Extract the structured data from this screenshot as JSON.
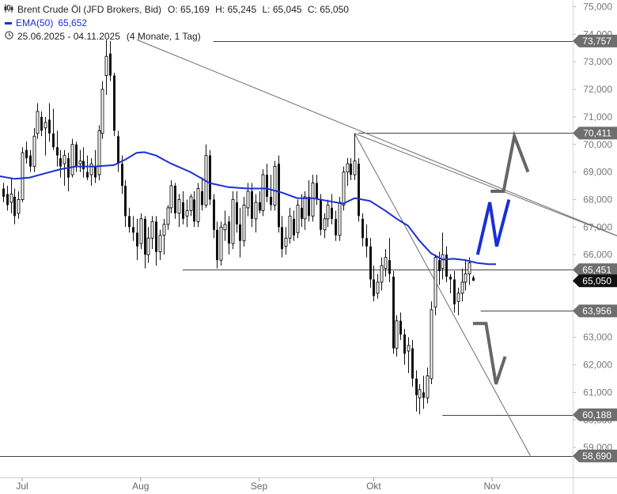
{
  "legend": {
    "instrument": "Brent Crude Öl (JFD Brokers, Bid)",
    "ohlc": {
      "open": "O: 65,169",
      "high": "H: 65,245",
      "low": "L: 65,045",
      "close": "C: 65,050"
    },
    "ema_label": "EMA(50)",
    "ema_value": "65,652",
    "date_range": "25.06.2025 - 04.11.2025",
    "range_detail": "(4 Monate, 1 Tag)"
  },
  "colors": {
    "ema": "#1a2fd6",
    "candle": "#111111",
    "trendline": "#7a7a7a",
    "level_line": "#444444",
    "badge_gray": "#6e6e6e",
    "badge_black": "#111111",
    "arrow_blue": "#1a2fd6",
    "arrow_gray": "#666666"
  },
  "chart_data": {
    "type": "candlestick",
    "ylim": [
      58.8,
      75.3
    ],
    "xlim": [
      0,
      130
    ],
    "x_ticks": [
      {
        "label": "Jul",
        "day": 6
      },
      {
        "label": "Aug",
        "day": 37
      },
      {
        "label": "Sep",
        "day": 68
      },
      {
        "label": "Okt",
        "day": 98
      },
      {
        "label": "Nov",
        "day": 129
      }
    ],
    "y_ticks": [
      {
        "value": 75,
        "label": "75,000"
      },
      {
        "value": 74,
        "label": "74,000"
      },
      {
        "value": 73,
        "label": "73,000"
      },
      {
        "value": 72,
        "label": "72,000"
      },
      {
        "value": 71,
        "label": "71,000"
      },
      {
        "value": 70,
        "label": "70,000"
      },
      {
        "value": 69,
        "label": "69,000"
      },
      {
        "value": 68,
        "label": "68,000"
      },
      {
        "value": 67,
        "label": "67,000"
      },
      {
        "value": 66,
        "label": "66,000"
      },
      {
        "value": 65,
        "label": "65,000"
      },
      {
        "value": 64,
        "label": "64,000"
      },
      {
        "value": 63,
        "label": "63,000"
      },
      {
        "value": 62,
        "label": "62,000"
      },
      {
        "value": 61,
        "label": "61,000"
      },
      {
        "value": 60,
        "label": "60,000"
      },
      {
        "value": 59,
        "label": "59,000"
      }
    ],
    "price_badges": [
      {
        "value": 73.757,
        "label": "73,757",
        "style": "gray"
      },
      {
        "value": 70.411,
        "label": "70,411",
        "style": "gray"
      },
      {
        "value": 65.451,
        "label": "65,451",
        "style": "gray"
      },
      {
        "value": 65.05,
        "label": "65,050",
        "style": "black"
      },
      {
        "value": 63.956,
        "label": "63,956",
        "style": "gray"
      },
      {
        "value": 60.188,
        "label": "60,188",
        "style": "gray"
      },
      {
        "value": 58.69,
        "label": "58,690",
        "style": "gray"
      }
    ],
    "horizontal_levels": [
      {
        "value": 73.757,
        "from_day": 56
      },
      {
        "value": 70.411,
        "from_day": 94
      },
      {
        "value": 65.451,
        "from_day": 48
      },
      {
        "value": 63.956,
        "from_day": 126
      },
      {
        "value": 60.188,
        "from_day": 116
      },
      {
        "value": 58.69,
        "from_day": 0
      }
    ],
    "trendlines": [
      {
        "d1": 36,
        "v1": 73.8,
        "d2": 165,
        "v2": 66.5
      },
      {
        "d1": 93,
        "v1": 70.4,
        "d2": 165,
        "v2": 66.5
      },
      {
        "d1": 93,
        "v1": 70.4,
        "d2": 139,
        "v2": 58.7
      }
    ],
    "ema_series": [
      [
        0,
        68.85
      ],
      [
        4,
        68.75
      ],
      [
        8,
        68.8
      ],
      [
        12,
        68.95
      ],
      [
        16,
        69.1
      ],
      [
        20,
        69.2
      ],
      [
        25,
        69.2
      ],
      [
        30,
        69.25
      ],
      [
        33,
        69.45
      ],
      [
        36,
        69.7
      ],
      [
        38,
        69.72
      ],
      [
        41,
        69.6
      ],
      [
        45,
        69.3
      ],
      [
        50,
        69.0
      ],
      [
        55,
        68.6
      ],
      [
        60,
        68.45
      ],
      [
        65,
        68.4
      ],
      [
        70,
        68.4
      ],
      [
        74,
        68.25
      ],
      [
        78,
        68.05
      ],
      [
        82,
        68.05
      ],
      [
        86,
        67.95
      ],
      [
        90,
        67.85
      ],
      [
        93,
        68.05
      ],
      [
        97,
        67.95
      ],
      [
        101,
        67.6
      ],
      [
        104,
        67.3
      ],
      [
        107,
        67.05
      ],
      [
        110,
        66.5
      ],
      [
        113,
        66.05
      ],
      [
        116,
        65.82
      ],
      [
        119,
        65.85
      ],
      [
        122,
        65.8
      ],
      [
        125,
        65.7
      ],
      [
        128,
        65.65
      ],
      [
        130,
        65.652
      ]
    ],
    "candles": [
      [
        1,
        68.4,
        68.6,
        67.9,
        68.1
      ],
      [
        2,
        68.2,
        68.5,
        67.6,
        67.8
      ],
      [
        3,
        67.9,
        68.8,
        67.5,
        68.2
      ],
      [
        4,
        68.1,
        68.4,
        67.1,
        67.4
      ],
      [
        5,
        67.5,
        68.3,
        67.3,
        68.0
      ],
      [
        6,
        68.0,
        69.9,
        67.9,
        69.7
      ],
      [
        7,
        69.8,
        70.1,
        69.3,
        69.5
      ],
      [
        8,
        69.6,
        69.8,
        69.0,
        69.2
      ],
      [
        9,
        69.2,
        70.6,
        69.0,
        70.3
      ],
      [
        10,
        70.4,
        71.5,
        70.2,
        71.2
      ],
      [
        11,
        71.0,
        71.2,
        70.3,
        70.5
      ],
      [
        12,
        70.6,
        71.0,
        69.6,
        70.8
      ],
      [
        13,
        70.9,
        71.5,
        70.1,
        70.4
      ],
      [
        14,
        70.4,
        71.3,
        69.8,
        69.9
      ],
      [
        15,
        69.9,
        70.5,
        69.2,
        69.6
      ],
      [
        16,
        69.5,
        69.8,
        68.8,
        69.2
      ],
      [
        17,
        69.3,
        69.8,
        68.5,
        69.6
      ],
      [
        18,
        69.5,
        69.7,
        68.3,
        68.8
      ],
      [
        19,
        68.9,
        70.2,
        68.8,
        70.0
      ],
      [
        20,
        70.0,
        70.1,
        69.0,
        69.2
      ],
      [
        21,
        69.3,
        69.8,
        69.0,
        69.4
      ],
      [
        22,
        69.4,
        69.9,
        68.8,
        69.1
      ],
      [
        23,
        69.0,
        69.6,
        68.7,
        68.8
      ],
      [
        24,
        68.9,
        69.5,
        68.5,
        69.3
      ],
      [
        25,
        69.2,
        69.8,
        68.6,
        68.8
      ],
      [
        26,
        68.9,
        70.7,
        68.7,
        70.5
      ],
      [
        27,
        70.4,
        72.3,
        70.2,
        72.0
      ],
      [
        28,
        72.5,
        73.8,
        71.8,
        73.2
      ],
      [
        29,
        73.3,
        73.76,
        72.3,
        72.5
      ],
      [
        30,
        72.5,
        72.6,
        70.3,
        70.5
      ],
      [
        31,
        70.3,
        70.5,
        69.0,
        69.3
      ],
      [
        32,
        69.3,
        69.6,
        68.2,
        68.5
      ],
      [
        33,
        68.5,
        68.7,
        67.0,
        67.4
      ],
      [
        34,
        67.4,
        67.7,
        66.8,
        67.0
      ],
      [
        35,
        67.0,
        67.4,
        66.5,
        66.8
      ],
      [
        36,
        66.8,
        67.3,
        65.8,
        66.3
      ],
      [
        37,
        66.4,
        67.5,
        66.2,
        67.3
      ],
      [
        38,
        67.3,
        67.4,
        65.5,
        66.0
      ],
      [
        39,
        66.0,
        67.0,
        65.7,
        66.6
      ],
      [
        40,
        66.6,
        67.4,
        66.2,
        67.2
      ],
      [
        41,
        67.2,
        67.4,
        65.6,
        66.1
      ],
      [
        42,
        66.1,
        66.9,
        65.8,
        66.7
      ],
      [
        43,
        66.7,
        67.3,
        66.0,
        67.1
      ],
      [
        44,
        67.1,
        67.8,
        66.9,
        67.7
      ],
      [
        45,
        67.7,
        68.7,
        67.5,
        68.5
      ],
      [
        46,
        68.5,
        68.6,
        67.3,
        67.5
      ],
      [
        47,
        67.5,
        68.2,
        67.0,
        68.0
      ],
      [
        48,
        67.9,
        68.3,
        67.1,
        67.3
      ],
      [
        49,
        67.4,
        68.0,
        67.0,
        67.6
      ],
      [
        50,
        67.6,
        68.2,
        67.4,
        68.1
      ],
      [
        51,
        68.0,
        68.3,
        67.0,
        67.2
      ],
      [
        52,
        67.2,
        68.6,
        67.0,
        68.4
      ],
      [
        53,
        68.3,
        68.8,
        67.6,
        67.8
      ],
      [
        54,
        67.8,
        70.0,
        67.7,
        69.6
      ],
      [
        55,
        69.6,
        69.8,
        67.8,
        68.0
      ],
      [
        56,
        68.0,
        68.2,
        66.6,
        66.9
      ],
      [
        57,
        66.9,
        67.2,
        65.5,
        65.8
      ],
      [
        58,
        65.8,
        67.2,
        65.6,
        67.0
      ],
      [
        59,
        66.9,
        67.6,
        66.5,
        67.1
      ],
      [
        60,
        67.2,
        67.4,
        66.0,
        66.4
      ],
      [
        61,
        66.4,
        68.3,
        66.2,
        68.0
      ],
      [
        62,
        67.9,
        68.3,
        66.8,
        67.1
      ],
      [
        63,
        67.1,
        67.7,
        65.9,
        66.5
      ],
      [
        64,
        66.5,
        68.1,
        66.3,
        67.8
      ],
      [
        65,
        67.7,
        68.6,
        67.4,
        68.3
      ],
      [
        66,
        68.3,
        68.6,
        67.0,
        67.3
      ],
      [
        67,
        67.3,
        68.2,
        66.8,
        67.9
      ],
      [
        68,
        67.9,
        68.3,
        67.5,
        67.6
      ],
      [
        69,
        67.6,
        69.1,
        67.4,
        68.9
      ],
      [
        70,
        68.9,
        69.3,
        67.9,
        68.1
      ],
      [
        71,
        68.1,
        68.9,
        67.6,
        67.8
      ],
      [
        72,
        67.8,
        69.4,
        67.6,
        69.2
      ],
      [
        73,
        69.3,
        69.6,
        66.8,
        67.0
      ],
      [
        74,
        67.0,
        67.4,
        65.9,
        66.2
      ],
      [
        75,
        66.3,
        67.0,
        66.0,
        66.6
      ],
      [
        76,
        66.6,
        67.7,
        66.4,
        67.4
      ],
      [
        77,
        67.3,
        67.6,
        66.5,
        66.7
      ],
      [
        78,
        66.8,
        68.0,
        66.6,
        67.8
      ],
      [
        79,
        67.7,
        68.2,
        67.0,
        67.3
      ],
      [
        80,
        67.3,
        68.3,
        66.9,
        68.1
      ],
      [
        81,
        68.1,
        68.7,
        67.2,
        67.4
      ],
      [
        82,
        67.4,
        68.9,
        67.2,
        68.6
      ],
      [
        83,
        68.6,
        68.9,
        67.8,
        68.0
      ],
      [
        84,
        68.0,
        68.2,
        66.7,
        66.9
      ],
      [
        85,
        66.9,
        67.5,
        66.6,
        67.3
      ],
      [
        86,
        67.3,
        68.0,
        67.0,
        67.8
      ],
      [
        87,
        67.7,
        68.2,
        67.1,
        67.3
      ],
      [
        88,
        67.3,
        67.6,
        66.5,
        66.7
      ],
      [
        89,
        66.7,
        68.1,
        66.5,
        67.9
      ],
      [
        90,
        67.8,
        69.2,
        67.6,
        69.0
      ],
      [
        91,
        69.0,
        69.5,
        68.5,
        69.3
      ],
      [
        92,
        69.3,
        69.5,
        68.7,
        68.9
      ],
      [
        93,
        68.9,
        70.41,
        68.7,
        69.4
      ],
      [
        94,
        69.3,
        69.5,
        67.2,
        67.4
      ],
      [
        95,
        67.3,
        67.5,
        66.3,
        66.6
      ],
      [
        96,
        66.6,
        67.1,
        65.9,
        66.3
      ],
      [
        97,
        66.3,
        66.6,
        64.8,
        65.1
      ],
      [
        98,
        65.1,
        65.6,
        64.3,
        64.5
      ],
      [
        99,
        64.6,
        65.3,
        64.4,
        65.0
      ],
      [
        100,
        65.0,
        65.9,
        64.7,
        65.6
      ],
      [
        101,
        65.5,
        66.2,
        65.2,
        65.9
      ],
      [
        102,
        65.8,
        66.6,
        65.0,
        65.3
      ],
      [
        103,
        65.2,
        65.4,
        62.4,
        62.6
      ],
      [
        104,
        62.6,
        63.8,
        62.3,
        63.6
      ],
      [
        105,
        63.6,
        63.9,
        62.9,
        63.1
      ],
      [
        106,
        63.1,
        63.3,
        62.0,
        62.4
      ],
      [
        107,
        62.5,
        63.0,
        61.7,
        62.7
      ],
      [
        108,
        62.6,
        62.9,
        61.2,
        61.5
      ],
      [
        109,
        61.5,
        61.8,
        60.3,
        60.9
      ],
      [
        110,
        60.8,
        61.3,
        60.2,
        61.1
      ],
      [
        111,
        61.0,
        61.6,
        60.4,
        60.8
      ],
      [
        112,
        60.8,
        61.9,
        60.6,
        61.6
      ],
      [
        113,
        61.5,
        64.3,
        61.3,
        64.0
      ],
      [
        114,
        64.1,
        66.0,
        63.8,
        65.9
      ],
      [
        115,
        65.8,
        66.1,
        64.9,
        65.4
      ],
      [
        116,
        65.5,
        66.8,
        65.1,
        66.0
      ],
      [
        117,
        66.0,
        66.3,
        65.0,
        65.2
      ],
      [
        118,
        65.2,
        65.3,
        64.6,
        65.1
      ],
      [
        119,
        65.1,
        65.4,
        63.9,
        64.2
      ],
      [
        120,
        64.3,
        64.8,
        63.8,
        64.6
      ],
      [
        121,
        64.6,
        65.5,
        64.3,
        65.0
      ],
      [
        122,
        65.0,
        65.8,
        64.7,
        65.3
      ],
      [
        123,
        65.3,
        65.9,
        64.9,
        65.7
      ],
      [
        124,
        65.169,
        65.245,
        65.045,
        65.05
      ]
    ],
    "forecast_arrows": [
      {
        "color": "blue",
        "points": [
          [
            125.2,
            66.0
          ],
          [
            128.4,
            67.9
          ],
          [
            130.2,
            66.3
          ],
          [
            133.4,
            68.0
          ]
        ]
      },
      {
        "color": "gray",
        "points": [
          [
            128.6,
            68.3
          ],
          [
            132.0,
            68.3
          ],
          [
            134.8,
            70.3
          ],
          [
            138.4,
            69.0
          ]
        ]
      },
      {
        "color": "gray",
        "points": [
          [
            124.0,
            63.5
          ],
          [
            127.4,
            63.5
          ],
          [
            130.0,
            61.3
          ],
          [
            132.4,
            62.3
          ]
        ]
      }
    ]
  }
}
